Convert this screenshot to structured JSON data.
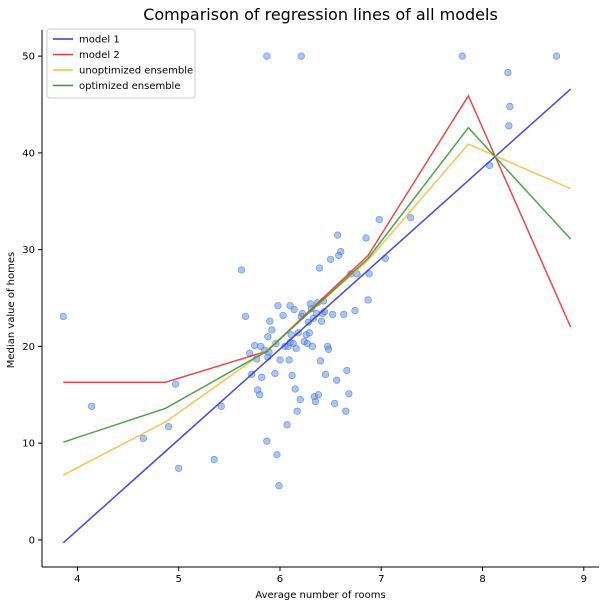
{
  "chart_data": {
    "type": "scatter",
    "title": "Comparison of regression lines of all models",
    "xlabel": "Average number of rooms",
    "ylabel": "Median value of homes",
    "xlim": [
      3.65,
      9.15
    ],
    "ylim": [
      -2.8,
      52.7
    ],
    "xticks": [
      4,
      5,
      6,
      7,
      8,
      9
    ],
    "yticks": [
      0,
      10,
      20,
      30,
      40,
      50
    ],
    "grid": false,
    "legend_position": "top-left",
    "points": {
      "color": "#6495ED",
      "x": [
        3.86,
        4.14,
        4.65,
        4.9,
        4.97,
        5.0,
        5.35,
        5.42,
        5.62,
        5.66,
        5.7,
        5.72,
        5.75,
        5.77,
        5.78,
        5.8,
        5.81,
        5.82,
        5.85,
        5.87,
        5.88,
        5.88,
        5.89,
        5.9,
        5.92,
        5.95,
        5.96,
        5.97,
        5.98,
        5.99,
        6.0,
        6.03,
        6.05,
        6.07,
        6.08,
        6.09,
        6.1,
        6.1,
        6.11,
        6.12,
        6.13,
        6.14,
        6.15,
        6.16,
        6.17,
        6.18,
        6.2,
        6.21,
        6.22,
        6.24,
        6.26,
        6.27,
        6.28,
        6.29,
        6.3,
        6.31,
        6.32,
        6.33,
        6.34,
        6.35,
        6.36,
        6.37,
        6.38,
        6.39,
        6.4,
        6.41,
        6.42,
        6.43,
        6.44,
        6.45,
        6.47,
        6.48,
        6.5,
        6.52,
        6.54,
        6.56,
        6.57,
        6.58,
        6.6,
        6.63,
        6.65,
        6.66,
        6.68,
        6.7,
        6.74,
        6.76,
        6.85,
        6.87,
        6.88,
        6.98,
        7.04,
        7.29,
        7.8,
        8.07,
        8.25,
        8.26,
        8.27,
        8.73,
        5.87,
        6.21
      ],
      "y": [
        23.1,
        13.8,
        10.5,
        11.7,
        16.1,
        7.4,
        8.3,
        13.8,
        27.9,
        23.1,
        19.3,
        17.1,
        20.1,
        18.7,
        15.5,
        15.0,
        20.0,
        16.8,
        19.6,
        10.2,
        21.0,
        18.9,
        19.4,
        22.6,
        21.7,
        17.2,
        20.3,
        8.8,
        24.2,
        5.6,
        18.6,
        23.2,
        20.0,
        11.9,
        20.0,
        18.6,
        20.4,
        24.2,
        21.2,
        17.0,
        20.3,
        23.8,
        15.6,
        19.8,
        13.3,
        21.4,
        14.5,
        23.1,
        23.4,
        20.5,
        21.2,
        20.3,
        22.5,
        21.4,
        24.4,
        23.9,
        20.0,
        22.9,
        14.8,
        14.3,
        23.4,
        24.5,
        15.0,
        28.1,
        18.5,
        22.6,
        23.4,
        24.7,
        23.6,
        17.1,
        20.0,
        19.7,
        29.0,
        23.3,
        14.1,
        16.5,
        31.5,
        29.4,
        29.8,
        23.3,
        13.3,
        17.5,
        15.1,
        27.5,
        23.7,
        27.5,
        31.2,
        24.8,
        27.5,
        33.1,
        29.1,
        33.3,
        50.0,
        38.7,
        48.3,
        42.8,
        44.8,
        50.0,
        50.0,
        50.0
      ]
    },
    "series": [
      {
        "name": "model 1",
        "color": "#3333DD",
        "x": [
          3.86,
          8.87
        ],
        "y": [
          -0.3,
          46.6
        ]
      },
      {
        "name": "model 2",
        "color": "#EE3333",
        "x": [
          3.86,
          4.87,
          5.87,
          6.87,
          7.86,
          8.87
        ],
        "y": [
          16.3,
          16.3,
          19.5,
          29.4,
          45.9,
          22.0
        ]
      },
      {
        "name": "unoptimized ensemble",
        "color": "#F5BD42",
        "x": [
          3.86,
          4.87,
          5.87,
          6.87,
          7.86,
          8.87
        ],
        "y": [
          6.7,
          12.2,
          19.6,
          28.9,
          40.9,
          36.3
        ]
      },
      {
        "name": "optimized ensemble",
        "color": "#3A9A3A",
        "x": [
          3.86,
          4.87,
          5.87,
          6.87,
          7.86,
          8.87
        ],
        "y": [
          10.1,
          13.6,
          19.5,
          29.1,
          42.6,
          31.1
        ]
      }
    ]
  }
}
